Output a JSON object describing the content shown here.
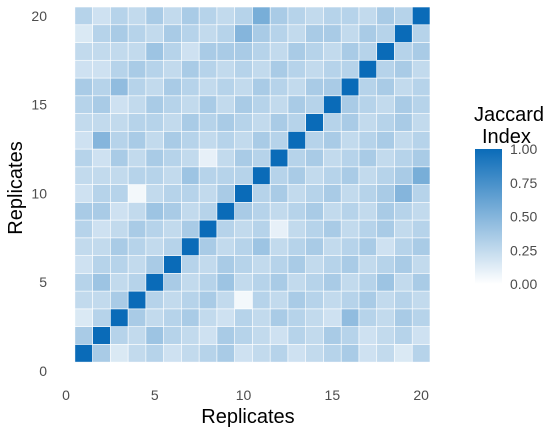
{
  "chart_data": {
    "type": "heatmap",
    "xlabel": "Replicates",
    "ylabel": "Replicates",
    "x_ticks": [
      "0",
      "5",
      "10",
      "15",
      "20"
    ],
    "y_ticks": [
      "0",
      "5",
      "10",
      "15",
      "20"
    ],
    "xlim": [
      0,
      20.5
    ],
    "ylim": [
      0,
      20.5
    ],
    "n": 20,
    "legend": {
      "title_line1": "Jaccard",
      "title_line2": "Index",
      "ticks": [
        "1.00",
        "0.75",
        "0.50",
        "0.25",
        "0.00"
      ],
      "placement": "right"
    },
    "colors": {
      "low": "#ffffff",
      "high": "#0a6bb8"
    },
    "values": [
      [
        1.0,
        0.35,
        0.15,
        0.25,
        0.3,
        0.2,
        0.25,
        0.3,
        0.35,
        0.2,
        0.25,
        0.3,
        0.2,
        0.25,
        0.3,
        0.35,
        0.2,
        0.25,
        0.15,
        0.3
      ],
      [
        0.35,
        1.0,
        0.3,
        0.25,
        0.4,
        0.3,
        0.25,
        0.2,
        0.35,
        0.3,
        0.25,
        0.2,
        0.3,
        0.25,
        0.35,
        0.3,
        0.2,
        0.25,
        0.3,
        0.2
      ],
      [
        0.15,
        0.3,
        1.0,
        0.35,
        0.25,
        0.3,
        0.35,
        0.25,
        0.2,
        0.3,
        0.25,
        0.35,
        0.3,
        0.25,
        0.2,
        0.45,
        0.3,
        0.25,
        0.35,
        0.3
      ],
      [
        0.25,
        0.25,
        0.35,
        1.0,
        0.3,
        0.25,
        0.3,
        0.35,
        0.25,
        0.05,
        0.3,
        0.25,
        0.35,
        0.3,
        0.25,
        0.3,
        0.35,
        0.25,
        0.3,
        0.25
      ],
      [
        0.3,
        0.4,
        0.25,
        0.3,
        1.0,
        0.35,
        0.25,
        0.3,
        0.4,
        0.25,
        0.3,
        0.35,
        0.25,
        0.3,
        0.35,
        0.25,
        0.3,
        0.4,
        0.25,
        0.35
      ],
      [
        0.2,
        0.3,
        0.3,
        0.25,
        0.35,
        1.0,
        0.3,
        0.25,
        0.35,
        0.3,
        0.25,
        0.3,
        0.35,
        0.25,
        0.3,
        0.35,
        0.25,
        0.3,
        0.35,
        0.25
      ],
      [
        0.25,
        0.25,
        0.35,
        0.3,
        0.25,
        0.3,
        1.0,
        0.35,
        0.25,
        0.3,
        0.4,
        0.25,
        0.3,
        0.35,
        0.25,
        0.3,
        0.35,
        0.2,
        0.3,
        0.35
      ],
      [
        0.3,
        0.2,
        0.25,
        0.35,
        0.3,
        0.25,
        0.35,
        1.0,
        0.3,
        0.25,
        0.3,
        0.1,
        0.25,
        0.3,
        0.35,
        0.25,
        0.3,
        0.35,
        0.25,
        0.3
      ],
      [
        0.35,
        0.35,
        0.2,
        0.25,
        0.4,
        0.35,
        0.25,
        0.3,
        1.0,
        0.35,
        0.3,
        0.25,
        0.3,
        0.35,
        0.25,
        0.3,
        0.25,
        0.35,
        0.3,
        0.25
      ],
      [
        0.2,
        0.3,
        0.3,
        0.05,
        0.25,
        0.3,
        0.3,
        0.25,
        0.35,
        1.0,
        0.3,
        0.35,
        0.25,
        0.3,
        0.35,
        0.25,
        0.3,
        0.35,
        0.5,
        0.3
      ],
      [
        0.25,
        0.25,
        0.25,
        0.3,
        0.3,
        0.25,
        0.4,
        0.3,
        0.3,
        0.3,
        1.0,
        0.3,
        0.35,
        0.25,
        0.3,
        0.35,
        0.25,
        0.3,
        0.35,
        0.55
      ],
      [
        0.3,
        0.2,
        0.35,
        0.25,
        0.35,
        0.3,
        0.25,
        0.1,
        0.25,
        0.35,
        0.3,
        1.0,
        0.3,
        0.35,
        0.25,
        0.3,
        0.35,
        0.25,
        0.3,
        0.35
      ],
      [
        0.2,
        0.5,
        0.3,
        0.35,
        0.25,
        0.35,
        0.3,
        0.25,
        0.3,
        0.25,
        0.35,
        0.3,
        1.0,
        0.3,
        0.35,
        0.25,
        0.3,
        0.35,
        0.25,
        0.3
      ],
      [
        0.25,
        0.25,
        0.25,
        0.3,
        0.3,
        0.25,
        0.35,
        0.3,
        0.35,
        0.3,
        0.25,
        0.35,
        0.3,
        1.0,
        0.3,
        0.35,
        0.25,
        0.3,
        0.35,
        0.25
      ],
      [
        0.3,
        0.35,
        0.2,
        0.25,
        0.35,
        0.3,
        0.25,
        0.35,
        0.25,
        0.35,
        0.3,
        0.25,
        0.35,
        0.3,
        1.0,
        0.35,
        0.3,
        0.25,
        0.35,
        0.3
      ],
      [
        0.35,
        0.3,
        0.45,
        0.3,
        0.25,
        0.35,
        0.3,
        0.25,
        0.3,
        0.25,
        0.35,
        0.3,
        0.25,
        0.35,
        0.35,
        1.0,
        0.3,
        0.35,
        0.25,
        0.3
      ],
      [
        0.2,
        0.2,
        0.3,
        0.35,
        0.3,
        0.25,
        0.35,
        0.3,
        0.25,
        0.3,
        0.25,
        0.35,
        0.3,
        0.25,
        0.3,
        0.3,
        1.0,
        0.3,
        0.35,
        0.25
      ],
      [
        0.25,
        0.25,
        0.25,
        0.25,
        0.4,
        0.3,
        0.2,
        0.35,
        0.35,
        0.35,
        0.3,
        0.25,
        0.35,
        0.3,
        0.25,
        0.35,
        0.3,
        1.0,
        0.3,
        0.35
      ],
      [
        0.15,
        0.3,
        0.35,
        0.3,
        0.25,
        0.35,
        0.3,
        0.25,
        0.3,
        0.5,
        0.35,
        0.3,
        0.25,
        0.35,
        0.35,
        0.25,
        0.35,
        0.3,
        1.0,
        0.3
      ],
      [
        0.3,
        0.2,
        0.3,
        0.25,
        0.35,
        0.25,
        0.35,
        0.3,
        0.25,
        0.3,
        0.55,
        0.35,
        0.3,
        0.25,
        0.3,
        0.3,
        0.25,
        0.35,
        0.3,
        1.0
      ]
    ]
  }
}
